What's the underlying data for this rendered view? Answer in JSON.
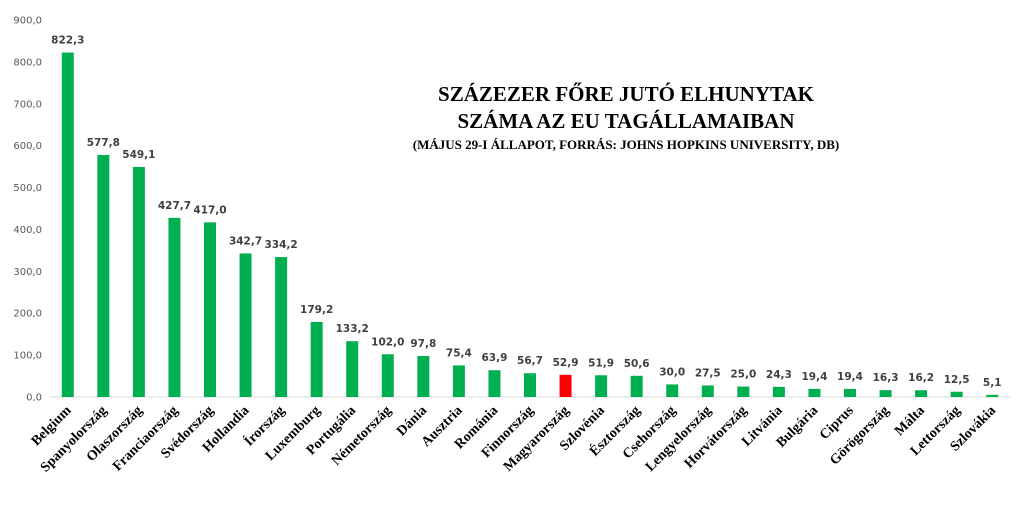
{
  "chart_data": {
    "type": "bar",
    "title_line1": "SZÁZEZER FŐRE JUTÓ ELHUNYTAK",
    "title_line2": "SZÁMA AZ EU TAGÁLLAMAIBAN",
    "subtitle": "(MÁJUS 29-I ÁLLAPOT, FORRÁS: JOHNS HOPKINS UNIVERSITY, DB)",
    "xlabel": "",
    "ylabel": "",
    "ylim": [
      0,
      900
    ],
    "yticks": [
      "0,0",
      "100,0",
      "200,0",
      "300,0",
      "400,0",
      "500,0",
      "600,0",
      "700,0",
      "800,0",
      "900,0"
    ],
    "grid": false,
    "categories": [
      "Belgium",
      "Spanyolország",
      "Olaszország",
      "Franciaország",
      "Svédország",
      "Hollandia",
      "Írország",
      "Luxemburg",
      "Portugália",
      "Németország",
      "Dánia",
      "Ausztria",
      "Románia",
      "Finnország",
      "Magyarország",
      "Szlovénia",
      "Észtország",
      "Csehország",
      "Lengyelország",
      "Horvátország",
      "Litvánia",
      "Bulgária",
      "Ciprus",
      "Görögország",
      "Málta",
      "Lettország",
      "Szlovákia"
    ],
    "values": [
      822.3,
      577.8,
      549.1,
      427.7,
      417.0,
      342.7,
      334.2,
      179.2,
      133.2,
      102.0,
      97.8,
      75.4,
      63.9,
      56.7,
      52.9,
      51.9,
      50.6,
      30.0,
      27.5,
      25.0,
      24.3,
      19.4,
      19.4,
      16.3,
      16.2,
      12.5,
      5.1
    ],
    "value_labels": [
      "822,3",
      "577,8",
      "549,1",
      "427,7",
      "417,0",
      "342,7",
      "334,2",
      "179,2",
      "133,2",
      "102,0",
      "97,8",
      "75,4",
      "63,9",
      "56,7",
      "52,9",
      "51,9",
      "50,6",
      "30,0",
      "27,5",
      "25,0",
      "24,3",
      "19,4",
      "19,4",
      "16,3",
      "16,2",
      "12,5",
      "5,1"
    ],
    "highlight_category": "Magyarország",
    "colors": {
      "bar": "#00b050",
      "highlight": "#ff0000",
      "axis": "#d9d9d9",
      "tick_text": "#595959",
      "value_text": "#404040"
    }
  }
}
